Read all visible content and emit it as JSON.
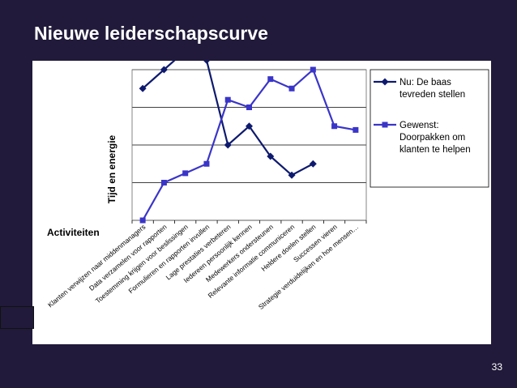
{
  "slide": {
    "title": "Nieuwe leiderschapscurve",
    "page_number": "33"
  },
  "colors": {
    "background": "#211a3a",
    "series_now": "#0e1a6e",
    "series_wanted": "#3a35c8"
  },
  "chart_data": {
    "type": "line",
    "title": "",
    "xlabel": "Activiteiten",
    "ylabel": "Tijd en energie",
    "ylim": [
      0,
      4
    ],
    "grid": true,
    "legend_position": "right",
    "categories": [
      "Klanten verwijzen naar middenmanagers",
      "Data verzamelen voor rapporten",
      "Toestemming krijgen voor beslissingen",
      "Formulieren en rapporten invullen",
      "Lage prestaties verbeteren",
      "Iedereen persoonlijk kennen",
      "Medewerkers ondersteunen",
      "Relevante informatie communiceren",
      "Heldere doelen stellen",
      "Successen vieren",
      "Strategie verduidelijken en hoe mensen…"
    ],
    "series": [
      {
        "name": "Nu: De baas tevreden stellen",
        "legend_lines": [
          "Nu: De baas",
          "tevreden stellen"
        ],
        "marker": "diamond",
        "values": [
          3.5,
          4.0,
          4.5,
          4.25,
          2.0,
          2.5,
          1.7,
          1.2,
          1.5,
          null,
          null
        ]
      },
      {
        "name": "Gewenst: Doorpakken om klanten te helpen",
        "legend_lines": [
          "Gewenst:",
          "Doorpakken om",
          "klanten te helpen"
        ],
        "marker": "square",
        "values": [
          0,
          1.0,
          1.25,
          1.5,
          3.2,
          3.0,
          3.75,
          3.5,
          4.0,
          2.5,
          2.4
        ]
      }
    ]
  }
}
